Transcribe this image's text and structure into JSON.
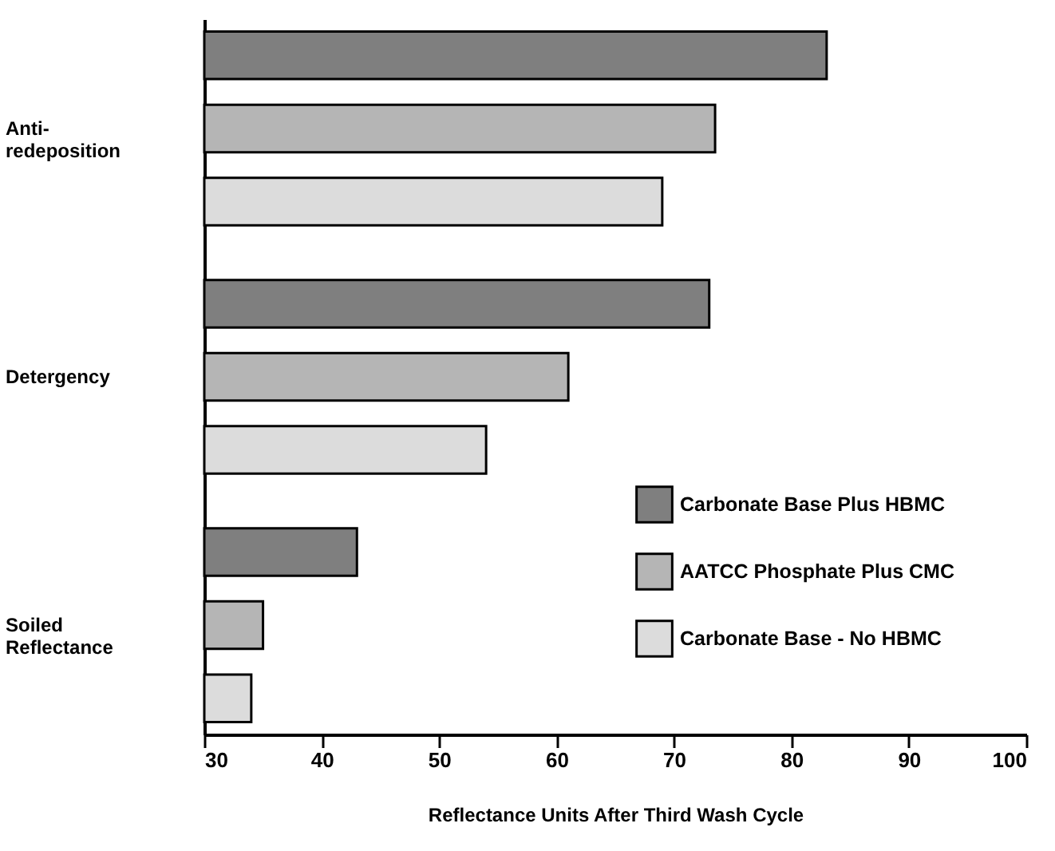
{
  "chart_data": {
    "type": "bar",
    "orientation": "horizontal",
    "xlabel": "Reflectance Units After Third Wash Cycle",
    "categories": [
      "Anti-redeposition",
      "Detergency",
      "Soiled Reflectance"
    ],
    "series": [
      {
        "name": "Carbonate Base Plus HBMC",
        "color": "#7f7f7f",
        "values": [
          83,
          73,
          43
        ]
      },
      {
        "name": "AATCC Phosphate Plus CMC",
        "color": "#b5b5b5",
        "values": [
          73.5,
          61,
          35
        ]
      },
      {
        "name": "Carbonate Base - No HBMC",
        "color": "#dcdcdc",
        "values": [
          69,
          54,
          34
        ]
      }
    ],
    "xlim": [
      30,
      100
    ],
    "xticks": [
      30,
      40,
      50,
      60,
      70,
      80,
      90,
      100
    ],
    "grid": false,
    "legend": "bottom right"
  }
}
